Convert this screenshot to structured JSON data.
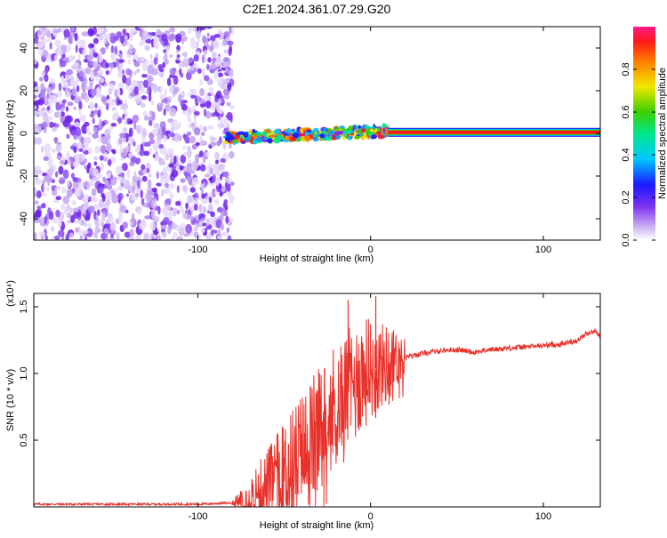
{
  "figure": {
    "title": "C2E1.2024.361.07.29.G20"
  },
  "chart_data": [
    {
      "type": "heatmap",
      "xlabel": "Height of straight line (km)",
      "ylabel": "Frequency (Hz)",
      "xlim": [
        -195,
        133
      ],
      "ylim": [
        -50,
        50
      ],
      "xticks": [
        -100,
        0,
        100
      ],
      "xtick_labels": [
        "-100",
        "0",
        "100"
      ],
      "yticks": [
        -40,
        -20,
        0,
        20,
        40
      ],
      "ytick_labels": [
        "-40",
        "-20",
        "0",
        "20",
        "40"
      ],
      "grid": false,
      "colorbar": {
        "label": "Normalized spectral amplitude",
        "range": [
          0,
          1
        ],
        "ticks": [
          0,
          0.2,
          0.4,
          0.6,
          0.8
        ],
        "tick_labels": [
          "0.0",
          "0.2",
          "0.4",
          "0.6",
          "0.8"
        ],
        "colormap": "rainbow (white-violet-blue-cyan-green-yellow-red-magenta)"
      },
      "regions": [
        {
          "x": [
            -195,
            -84
          ],
          "freq": [
            -50,
            50
          ],
          "amplitude": "noise 0.1-0.3"
        },
        {
          "x": [
            -84,
            10
          ],
          "freq": [
            -4,
            3
          ],
          "amplitude": "0.3-0.9 concentrated near 0 Hz"
        },
        {
          "x": [
            10,
            133
          ],
          "freq": [
            -1,
            1
          ],
          "amplitude": "about 0.9 steady line at 0 Hz"
        }
      ]
    },
    {
      "type": "line",
      "xlabel": "Height of straight line (km)",
      "ylabel": "SNR (10 * v/v)",
      "y_multiplier": "(x10⁴)",
      "xlim": [
        -195,
        133
      ],
      "ylim": [
        0,
        1.6
      ],
      "xticks": [
        -100,
        0,
        100
      ],
      "xtick_labels": [
        "-100",
        "0",
        "100"
      ],
      "yticks": [
        0.5,
        1.0,
        1.5
      ],
      "ytick_labels": [
        "0.5",
        "1.0",
        "1.5"
      ],
      "grid": false,
      "color": "#e8312a",
      "series": [
        {
          "x": [
            -195,
            -150,
            -100,
            -80,
            -70,
            -60,
            -50,
            -40,
            -30,
            -20,
            -10,
            -5,
            0,
            5,
            10,
            20,
            30,
            40,
            50,
            60,
            70,
            80,
            90,
            100,
            110,
            120,
            125,
            130,
            133
          ],
          "y": [
            0.02,
            0.02,
            0.02,
            0.03,
            0.08,
            0.15,
            0.25,
            0.4,
            0.55,
            0.75,
            0.9,
            1.0,
            1.02,
            1.05,
            1.08,
            1.12,
            1.15,
            1.17,
            1.18,
            1.16,
            1.18,
            1.19,
            1.2,
            1.21,
            1.22,
            1.25,
            1.3,
            1.32,
            1.28
          ]
        }
      ],
      "spikes": [
        {
          "x": -13,
          "y": 1.55
        },
        {
          "x": 3,
          "y": 1.58
        }
      ]
    }
  ]
}
